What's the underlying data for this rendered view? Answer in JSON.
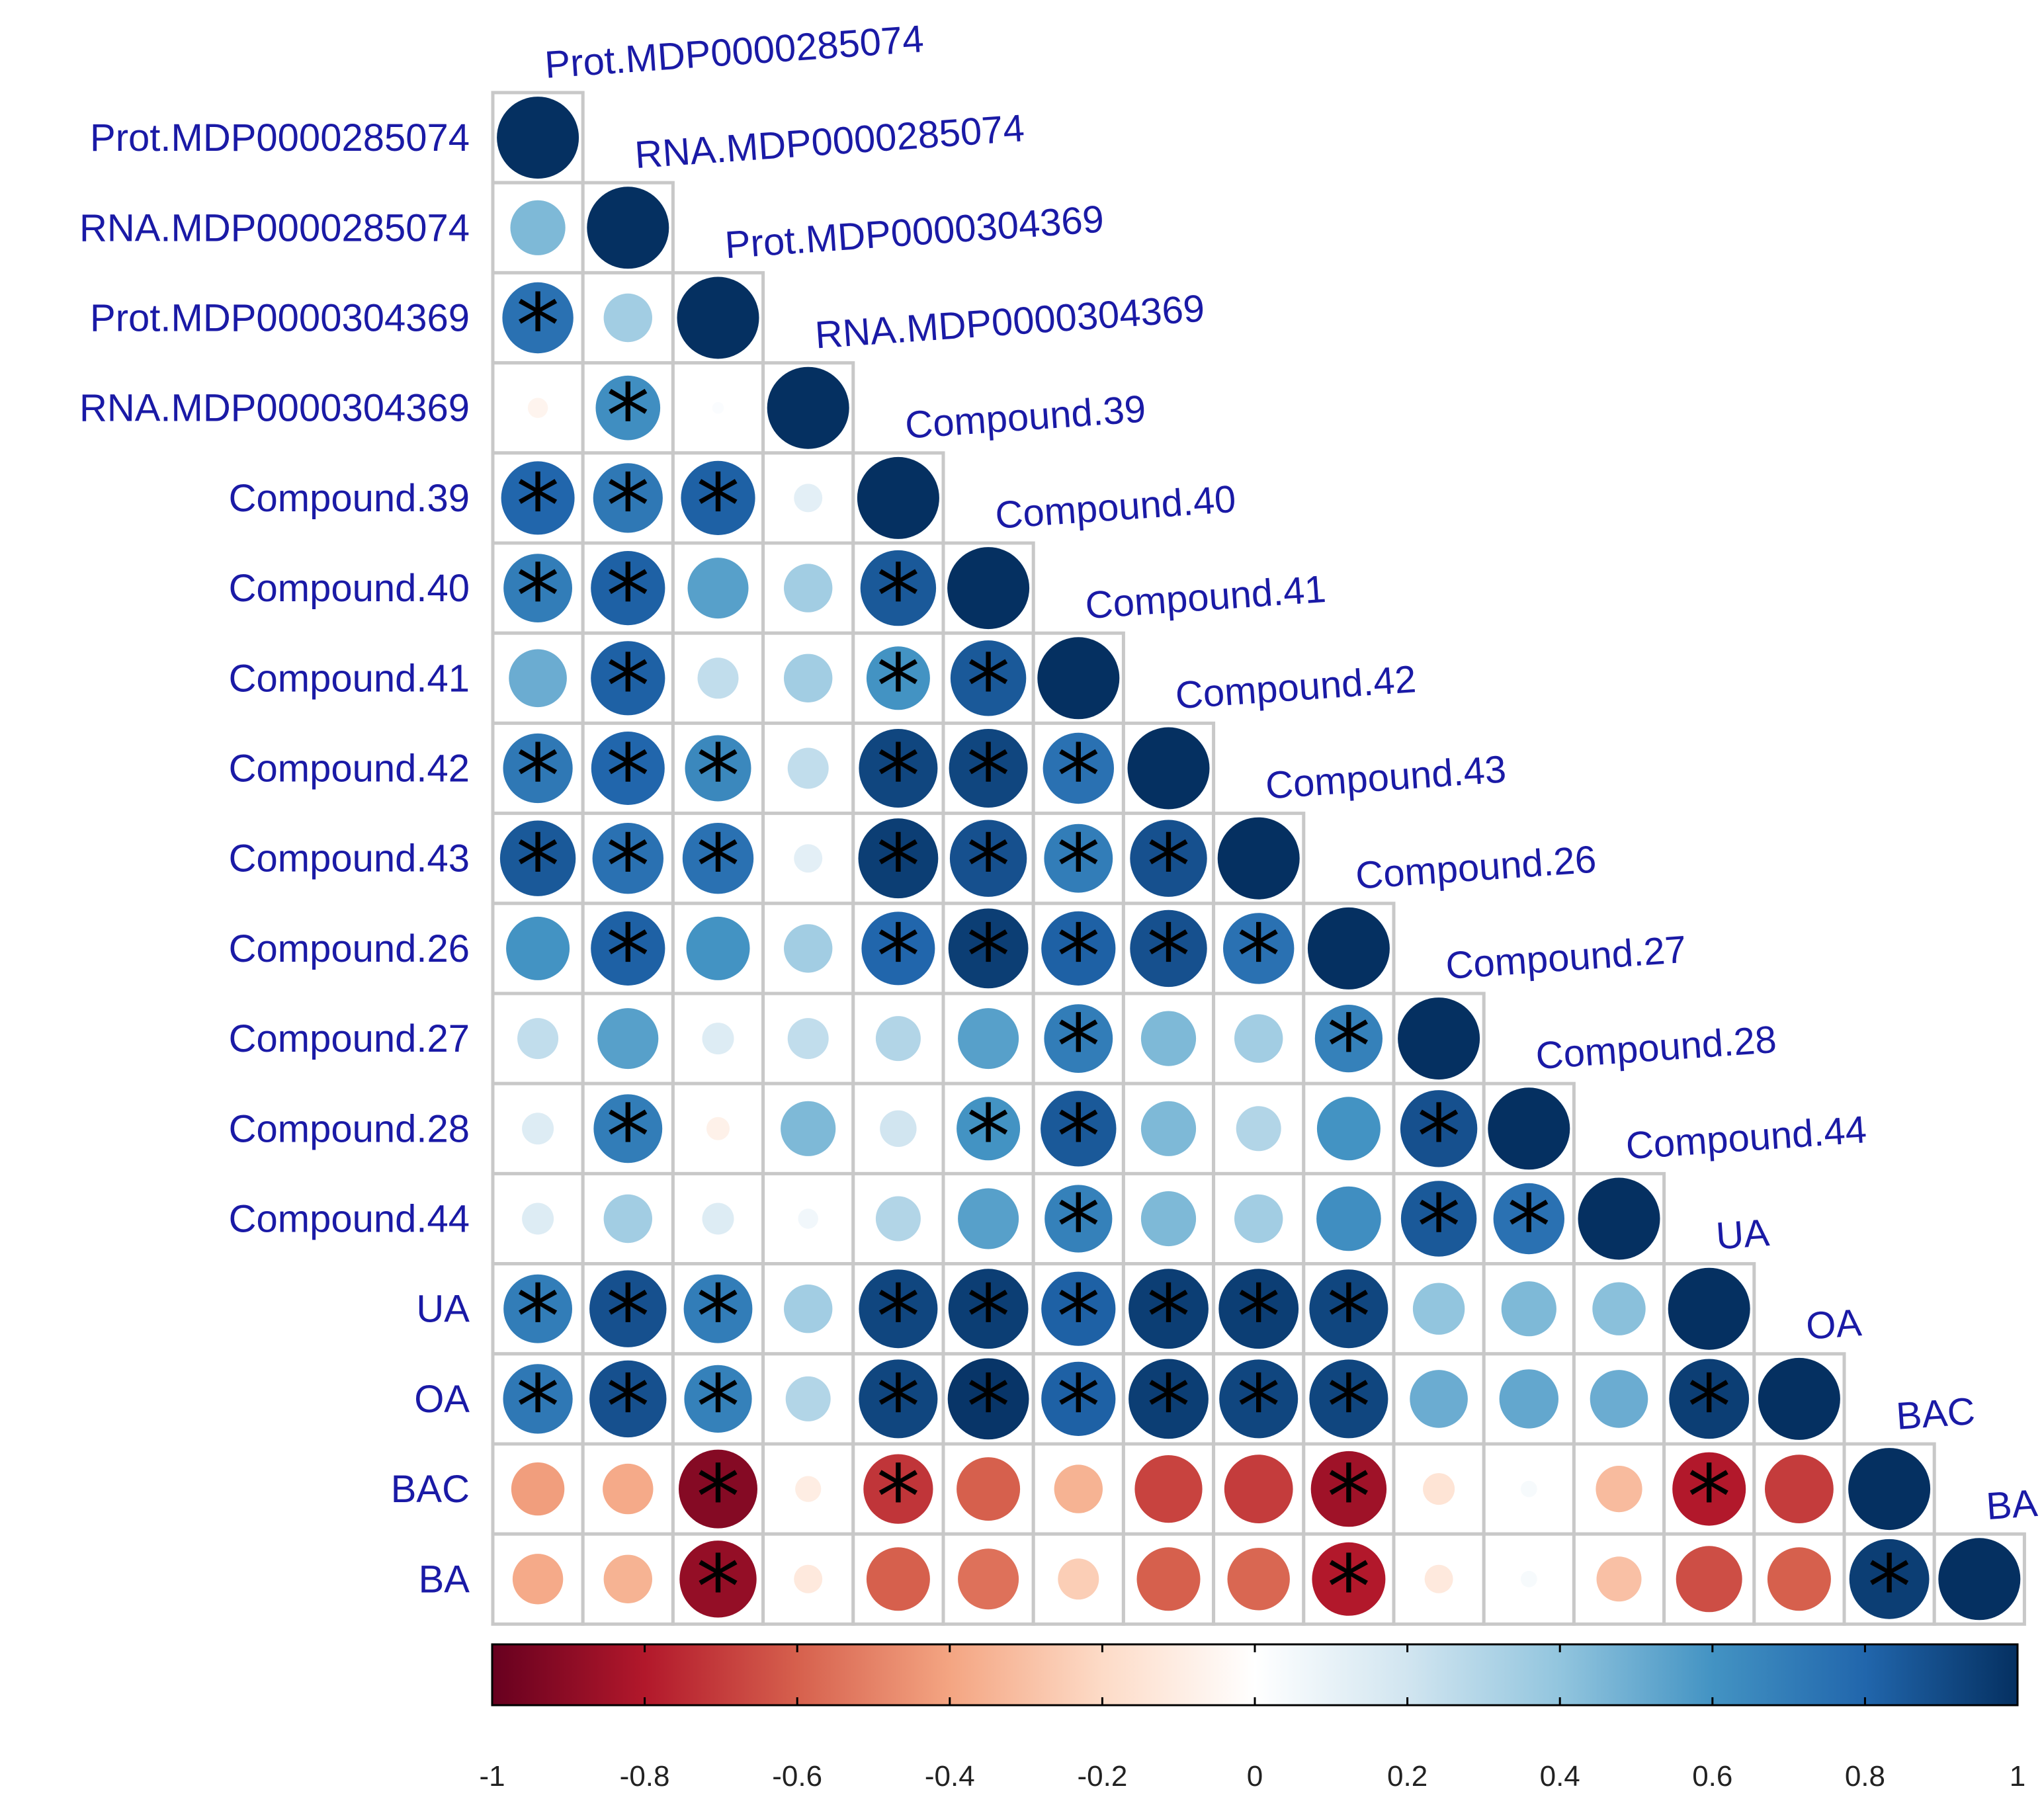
{
  "chart_data": {
    "type": "heatmap",
    "subtype": "correlation-plot-lower-triangle",
    "variables": [
      "Prot.MDP0000285074",
      "RNA.MDP0000285074",
      "Prot.MDP0000304369",
      "RNA.MDP0000304369",
      "Compound.39",
      "Compound.40",
      "Compound.41",
      "Compound.42",
      "Compound.43",
      "Compound.26",
      "Compound.27",
      "Compound.28",
      "Compound.44",
      "UA",
      "OA",
      "BAC",
      "BA"
    ],
    "matrix": [
      [
        1.0
      ],
      [
        0.45,
        1.0
      ],
      [
        0.75,
        0.35,
        1.0
      ],
      [
        -0.06,
        0.62,
        0.02,
        1.0
      ],
      [
        0.8,
        0.72,
        0.82,
        0.12,
        1.0
      ],
      [
        0.7,
        0.82,
        0.55,
        0.35,
        0.85,
        1.0
      ],
      [
        0.5,
        0.82,
        0.25,
        0.35,
        0.6,
        0.85,
        1.0
      ],
      [
        0.72,
        0.8,
        0.65,
        0.25,
        0.92,
        0.92,
        0.75,
        1.0
      ],
      [
        0.85,
        0.75,
        0.75,
        0.12,
        0.95,
        0.88,
        0.7,
        0.88,
        1.0
      ],
      [
        0.6,
        0.82,
        0.6,
        0.35,
        0.8,
        0.95,
        0.82,
        0.88,
        0.75,
        1.0
      ],
      [
        0.25,
        0.55,
        0.15,
        0.25,
        0.3,
        0.55,
        0.7,
        0.45,
        0.35,
        0.68,
        1.0
      ],
      [
        0.15,
        0.7,
        -0.08,
        0.45,
        0.2,
        0.6,
        0.85,
        0.45,
        0.3,
        0.6,
        0.88,
        1.0
      ],
      [
        0.15,
        0.35,
        0.15,
        0.06,
        0.3,
        0.55,
        0.68,
        0.45,
        0.35,
        0.62,
        0.85,
        0.75,
        1.0
      ],
      [
        0.7,
        0.88,
        0.7,
        0.35,
        0.92,
        0.95,
        0.82,
        0.95,
        0.95,
        0.92,
        0.4,
        0.45,
        0.42,
        1.0
      ],
      [
        0.72,
        0.88,
        0.68,
        0.3,
        0.92,
        0.98,
        0.82,
        0.95,
        0.92,
        0.92,
        0.5,
        0.52,
        0.5,
        0.95,
        1.0
      ],
      [
        -0.42,
        -0.38,
        -0.92,
        -0.1,
        -0.72,
        -0.6,
        -0.35,
        -0.68,
        -0.7,
        -0.85,
        -0.15,
        0.04,
        -0.32,
        -0.8,
        -0.7,
        1.0
      ],
      [
        -0.38,
        -0.35,
        -0.88,
        -0.12,
        -0.6,
        -0.55,
        -0.25,
        -0.6,
        -0.58,
        -0.8,
        -0.12,
        0.04,
        -0.3,
        -0.65,
        -0.6,
        0.95,
        1.0
      ]
    ],
    "significant": [
      [
        false
      ],
      [
        false,
        false
      ],
      [
        true,
        false,
        false
      ],
      [
        false,
        true,
        false,
        false
      ],
      [
        true,
        true,
        true,
        false,
        false
      ],
      [
        true,
        true,
        false,
        false,
        true,
        false
      ],
      [
        false,
        true,
        false,
        false,
        true,
        true,
        false
      ],
      [
        true,
        true,
        true,
        false,
        true,
        true,
        true,
        false
      ],
      [
        true,
        true,
        true,
        false,
        true,
        true,
        true,
        true,
        false
      ],
      [
        false,
        true,
        false,
        false,
        true,
        true,
        true,
        true,
        true,
        false
      ],
      [
        false,
        false,
        false,
        false,
        false,
        false,
        true,
        false,
        false,
        true,
        false
      ],
      [
        false,
        true,
        false,
        false,
        false,
        true,
        true,
        false,
        false,
        false,
        true,
        false
      ],
      [
        false,
        false,
        false,
        false,
        false,
        false,
        true,
        false,
        false,
        false,
        true,
        true,
        false
      ],
      [
        true,
        true,
        true,
        false,
        true,
        true,
        true,
        true,
        true,
        true,
        false,
        false,
        false,
        false
      ],
      [
        true,
        true,
        true,
        false,
        true,
        true,
        true,
        true,
        true,
        true,
        false,
        false,
        false,
        true,
        false
      ],
      [
        false,
        false,
        true,
        false,
        true,
        false,
        false,
        false,
        false,
        true,
        false,
        false,
        false,
        true,
        false,
        false
      ],
      [
        false,
        false,
        true,
        false,
        false,
        false,
        false,
        false,
        false,
        true,
        false,
        false,
        false,
        false,
        false,
        true,
        false
      ]
    ],
    "significance_marker": "*",
    "colorbar": {
      "range": [
        -1,
        1
      ],
      "ticks": [
        "-1",
        "-0.8",
        "-0.6",
        "-0.4",
        "-0.2",
        "0",
        "0.2",
        "0.4",
        "0.6",
        "0.8",
        "1"
      ],
      "colors": [
        "#67001F",
        "#B2182B",
        "#D6604D",
        "#F4A582",
        "#FDDBC7",
        "#FFFFFF",
        "#D1E5F0",
        "#92C5DE",
        "#4393C3",
        "#2166AC",
        "#053061"
      ]
    }
  }
}
